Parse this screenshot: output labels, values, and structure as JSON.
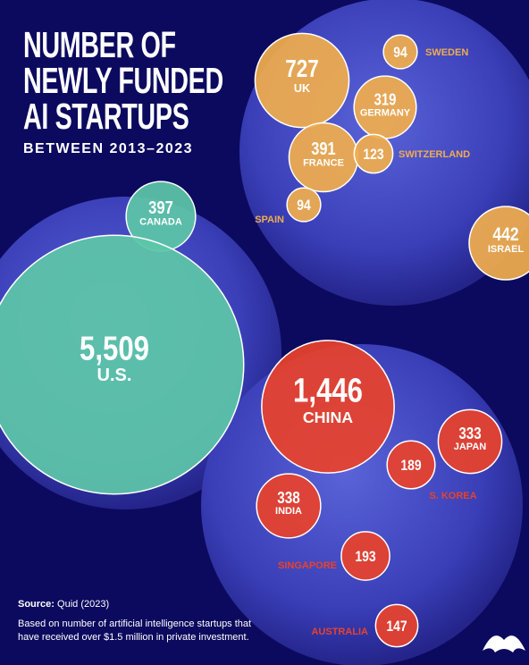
{
  "chart_data": {
    "type": "bubble",
    "title": "NUMBER OF NEWLY FUNDED AI STARTUPS",
    "subtitle": "BETWEEN 2013–2023",
    "categories": [
      "SWEDEN",
      "UK",
      "GERMANY",
      "FRANCE",
      "SWITZERLAND",
      "SPAIN",
      "ISRAEL",
      "CANADA",
      "U.S.",
      "CHINA",
      "JAPAN",
      "S. KOREA",
      "INDIA",
      "SINGAPORE",
      "AUSTRALIA"
    ],
    "values": [
      94,
      727,
      319,
      391,
      123,
      94,
      442,
      397,
      5509,
      1446,
      333,
      189,
      338,
      193,
      147
    ],
    "value_labels": [
      "94",
      "727",
      "319",
      "391",
      "123",
      "94",
      "442",
      "397",
      "5,509",
      "1,446",
      "333",
      "189",
      "338",
      "193",
      "147"
    ],
    "colors": [
      "#f0ad4e",
      "#f0ad4e",
      "#f0ad4e",
      "#f0ad4e",
      "#f0ad4e",
      "#f0ad4e",
      "#f0ad4e",
      "#5cc6a8",
      "#5cc6a8",
      "#e8422c",
      "#e8422c",
      "#e8422c",
      "#e8422c",
      "#e8422c",
      "#e8422c"
    ],
    "source_label": "Source:",
    "source": "Quid (2023)",
    "note": "Based on number of artificial intelligence startups that have received over $1.5 million in private investment."
  }
}
